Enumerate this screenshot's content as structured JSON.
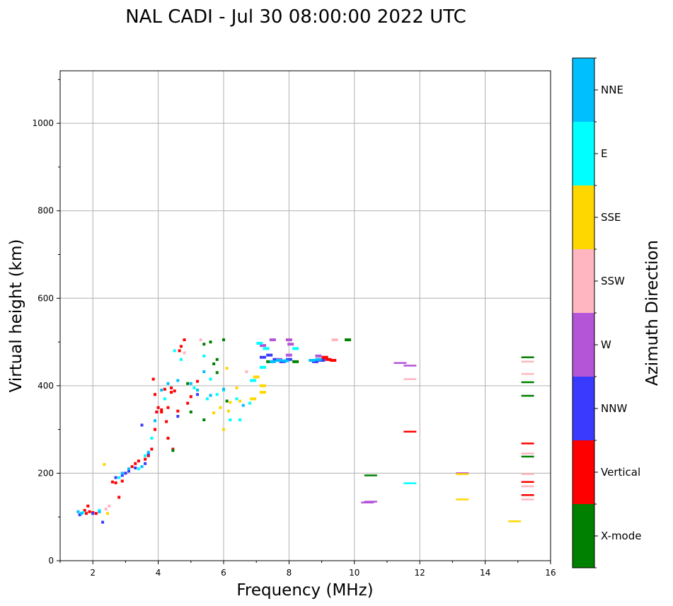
{
  "chart_data": {
    "type": "scatter",
    "title": "NAL CADI - Jul 30 08:00:00 2022 UTC",
    "xlabel": "Frequency (MHz)",
    "ylabel": "Virtual height (km)",
    "xlim": [
      1.0,
      16.0
    ],
    "ylim": [
      0,
      1120
    ],
    "xticks": [
      2,
      4,
      6,
      8,
      10,
      12,
      14,
      16
    ],
    "yticks": [
      0,
      200,
      400,
      600,
      800,
      1000
    ],
    "grid": true,
    "colorbar": {
      "label": "Azimuth Direction",
      "categories": [
        {
          "name": "X-mode",
          "color": "#008000"
        },
        {
          "name": "Vertical",
          "color": "#ff0000"
        },
        {
          "name": "NNW",
          "color": "#3a3aff"
        },
        {
          "name": "W",
          "color": "#b455d8"
        },
        {
          "name": "SSW",
          "color": "#ffb6c1"
        },
        {
          "name": "SSE",
          "color": "#ffd700"
        },
        {
          "name": "E",
          "color": "#00ffff"
        },
        {
          "name": "NNE",
          "color": "#00bfff"
        }
      ]
    },
    "series": [
      {
        "name": "Vertical",
        "color": "#ff0000",
        "points": [
          [
            1.8,
            108
          ],
          [
            1.9,
            112
          ],
          [
            2.0,
            110
          ],
          [
            2.1,
            108
          ],
          [
            1.75,
            115
          ],
          [
            1.85,
            125
          ],
          [
            2.2,
            112
          ],
          [
            2.6,
            180
          ],
          [
            2.7,
            178
          ],
          [
            2.8,
            145
          ],
          [
            2.9,
            182
          ],
          [
            3.0,
            200
          ],
          [
            3.1,
            205
          ],
          [
            3.2,
            215
          ],
          [
            3.3,
            222
          ],
          [
            3.4,
            228
          ],
          [
            3.6,
            232
          ],
          [
            3.7,
            240
          ],
          [
            3.8,
            255
          ],
          [
            3.9,
            300
          ],
          [
            3.95,
            340
          ],
          [
            4.0,
            350
          ],
          [
            4.1,
            340
          ],
          [
            3.85,
            415
          ],
          [
            3.9,
            380
          ],
          [
            4.1,
            345
          ],
          [
            4.2,
            392
          ],
          [
            4.25,
            318
          ],
          [
            4.4,
            385
          ],
          [
            4.5,
            388
          ],
          [
            4.3,
            350
          ],
          [
            4.6,
            342
          ],
          [
            4.65,
            480
          ],
          [
            4.7,
            490
          ],
          [
            4.8,
            505
          ],
          [
            4.4,
            395
          ],
          [
            4.9,
            360
          ],
          [
            5.0,
            375
          ],
          [
            5.2,
            410
          ],
          [
            4.3,
            280
          ],
          [
            4.45,
            255
          ],
          [
            9.0,
            460
          ],
          [
            9.2,
            460
          ],
          [
            9.35,
            458
          ],
          [
            9.1,
            465
          ],
          [
            11.7,
            295
          ],
          [
            15.3,
            268
          ],
          [
            15.3,
            180
          ],
          [
            15.3,
            150
          ]
        ]
      },
      {
        "name": "X-mode",
        "color": "#008000",
        "points": [
          [
            4.45,
            252
          ],
          [
            4.9,
            405
          ],
          [
            5.0,
            340
          ],
          [
            5.4,
            322
          ],
          [
            5.6,
            500
          ],
          [
            5.7,
            450
          ],
          [
            5.8,
            460
          ],
          [
            6.1,
            365
          ],
          [
            5.4,
            495
          ],
          [
            5.8,
            430
          ],
          [
            6.0,
            505
          ],
          [
            7.4,
            455
          ],
          [
            8.2,
            455
          ],
          [
            9.8,
            505
          ],
          [
            10.5,
            195
          ],
          [
            15.3,
            465
          ],
          [
            15.3,
            408
          ],
          [
            15.3,
            377
          ],
          [
            15.3,
            238
          ]
        ]
      },
      {
        "name": "NNW",
        "color": "#3a3aff",
        "points": [
          [
            1.6,
            105
          ],
          [
            2.0,
            108
          ],
          [
            2.7,
            190
          ],
          [
            2.9,
            195
          ],
          [
            3.0,
            200
          ],
          [
            3.1,
            205
          ],
          [
            3.3,
            212
          ],
          [
            3.6,
            222
          ],
          [
            3.7,
            245
          ],
          [
            3.5,
            310
          ],
          [
            7.2,
            465
          ],
          [
            7.4,
            470
          ],
          [
            7.6,
            460
          ],
          [
            7.8,
            455
          ],
          [
            8.0,
            460
          ],
          [
            8.8,
            455
          ],
          [
            9.0,
            458
          ],
          [
            4.6,
            330
          ],
          [
            5.2,
            380
          ],
          [
            2.3,
            88
          ]
        ]
      },
      {
        "name": "W",
        "color": "#b455d8",
        "points": [
          [
            7.2,
            492
          ],
          [
            7.5,
            505
          ],
          [
            8.0,
            470
          ],
          [
            8.05,
            495
          ],
          [
            7.7,
            460
          ],
          [
            8.9,
            468
          ],
          [
            8.0,
            505
          ],
          [
            10.5,
            135
          ],
          [
            10.4,
            133
          ],
          [
            11.4,
            452
          ],
          [
            11.7,
            446
          ],
          [
            13.3,
            200
          ]
        ]
      },
      {
        "name": "SSW",
        "color": "#ffb6c1",
        "points": [
          [
            2.4,
            118
          ],
          [
            2.5,
            125
          ],
          [
            4.8,
            475
          ],
          [
            5.3,
            505
          ],
          [
            6.7,
            432
          ],
          [
            9.4,
            505
          ],
          [
            11.7,
            415
          ],
          [
            15.3,
            455
          ],
          [
            15.3,
            427
          ],
          [
            15.3,
            245
          ],
          [
            15.3,
            198
          ],
          [
            15.3,
            170
          ],
          [
            15.3,
            140
          ]
        ]
      },
      {
        "name": "SSE",
        "color": "#ffd700",
        "points": [
          [
            2.35,
            220
          ],
          [
            2.45,
            108
          ],
          [
            5.7,
            338
          ],
          [
            5.9,
            350
          ],
          [
            6.0,
            300
          ],
          [
            6.15,
            342
          ],
          [
            6.2,
            362
          ],
          [
            6.4,
            395
          ],
          [
            6.5,
            365
          ],
          [
            6.9,
            370
          ],
          [
            7.0,
            420
          ],
          [
            7.2,
            400
          ],
          [
            7.2,
            385
          ],
          [
            6.1,
            440
          ],
          [
            13.3,
            140
          ],
          [
            13.3,
            198
          ],
          [
            14.9,
            90
          ]
        ]
      },
      {
        "name": "E",
        "color": "#00ffff",
        "points": [
          [
            1.7,
            110
          ],
          [
            2.2,
            115
          ],
          [
            2.8,
            190
          ],
          [
            3.4,
            210
          ],
          [
            3.6,
            240
          ],
          [
            3.8,
            280
          ],
          [
            4.2,
            370
          ],
          [
            4.5,
            480
          ],
          [
            4.7,
            460
          ],
          [
            5.1,
            395
          ],
          [
            5.5,
            370
          ],
          [
            5.6,
            415
          ],
          [
            5.8,
            380
          ],
          [
            6.0,
            390
          ],
          [
            6.2,
            322
          ],
          [
            6.4,
            370
          ],
          [
            6.5,
            322
          ],
          [
            6.8,
            360
          ],
          [
            6.9,
            412
          ],
          [
            7.1,
            497
          ],
          [
            7.2,
            442
          ],
          [
            7.3,
            485
          ],
          [
            8.2,
            485
          ],
          [
            5.4,
            468
          ],
          [
            11.7,
            177
          ]
        ]
      },
      {
        "name": "NNE",
        "color": "#00bfff",
        "points": [
          [
            1.55,
            112
          ],
          [
            1.65,
            108
          ],
          [
            2.2,
            112
          ],
          [
            2.9,
            200
          ],
          [
            3.1,
            210
          ],
          [
            3.5,
            215
          ],
          [
            3.7,
            248
          ],
          [
            3.9,
            320
          ],
          [
            4.1,
            390
          ],
          [
            4.3,
            405
          ],
          [
            4.6,
            412
          ],
          [
            5.0,
            405
          ],
          [
            5.2,
            390
          ],
          [
            5.4,
            432
          ],
          [
            5.6,
            378
          ],
          [
            6.0,
            392
          ],
          [
            6.6,
            355
          ],
          [
            7.5,
            455
          ],
          [
            7.7,
            458
          ],
          [
            7.9,
            457
          ],
          [
            8.7,
            458
          ],
          [
            8.9,
            460
          ]
        ]
      }
    ]
  }
}
